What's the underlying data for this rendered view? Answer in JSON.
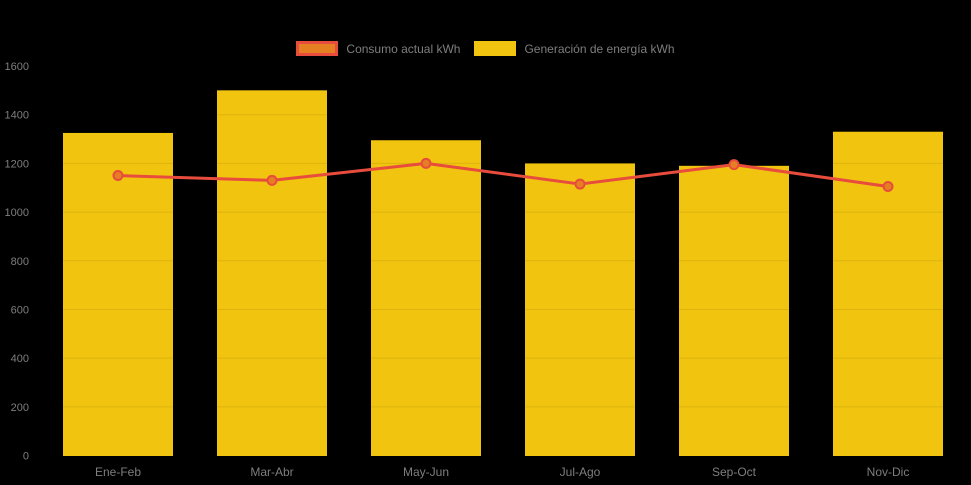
{
  "legend": {
    "position": "top",
    "items": [
      {
        "label": "Consumo actual kWh",
        "fill": "#E67E22",
        "border": "#E74C3C"
      },
      {
        "label": "Generación de energía kWh",
        "fill": "#F1C40F",
        "border": "#F1C40F"
      }
    ]
  },
  "chart_data": {
    "type": "mixed",
    "title": "",
    "xlabel": "",
    "ylabel": "",
    "categories": [
      "Ene-Feb",
      "Mar-Abr",
      "May-Jun",
      "Jul-Ago",
      "Sep-Oct",
      "Nov-Dic"
    ],
    "series": [
      {
        "name": "Generación de energía kWh",
        "type": "bar",
        "color": "#F1C40F",
        "values": [
          1325,
          1500,
          1295,
          1200,
          1190,
          1330
        ]
      },
      {
        "name": "Consumo actual kWh",
        "type": "line",
        "color": "#E74C3C",
        "marker_fill": "#E67E22",
        "values": [
          1150,
          1130,
          1200,
          1115,
          1195,
          1105
        ]
      }
    ],
    "ylim": [
      0,
      1600
    ],
    "y_ticks": [
      0,
      200,
      400,
      600,
      800,
      1000,
      1200,
      1400,
      1600
    ],
    "grid": "subtle",
    "legend_position": "top",
    "background": "#000000",
    "text_color": "#7E7E7E"
  }
}
